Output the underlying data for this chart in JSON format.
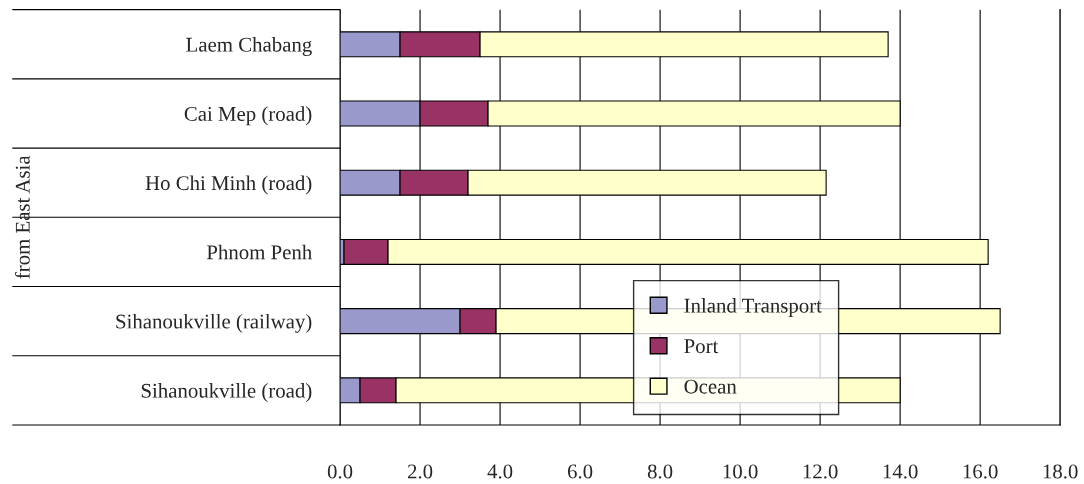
{
  "chart_data": {
    "type": "bar",
    "orientation": "horizontal",
    "stacked": true,
    "ylabel": "from East Asia",
    "categories": [
      "Laem Chabang",
      "Cai Mep (road)",
      "Ho Chi Minh (road)",
      "Phnom Penh",
      "Sihanoukville (railway)",
      "Sihanoukville (road)"
    ],
    "series": [
      {
        "name": "Inland Transport",
        "color": "#9999cc",
        "values": [
          1.5,
          2.0,
          1.5,
          0.1,
          3.0,
          0.5
        ]
      },
      {
        "name": "Port",
        "color": "#993366",
        "values": [
          2.0,
          1.7,
          1.7,
          1.1,
          0.9,
          0.9
        ]
      },
      {
        "name": "Ocean",
        "color": "#ffffcc",
        "values": [
          10.2,
          10.3,
          8.95,
          15.0,
          12.6,
          12.6
        ]
      }
    ],
    "xlim": [
      0,
      18
    ],
    "xticks": [
      {
        "value": 0,
        "label": "0.0"
      },
      {
        "value": 2,
        "label": "2.0"
      },
      {
        "value": 4,
        "label": "4.0"
      },
      {
        "value": 6,
        "label": "6.0"
      },
      {
        "value": 8,
        "label": "8.0"
      },
      {
        "value": 10,
        "label": "10.0"
      },
      {
        "value": 12,
        "label": "12.0"
      },
      {
        "value": 14,
        "label": "14.0"
      },
      {
        "value": 16,
        "label": "16.0"
      },
      {
        "value": 18,
        "label": "18.0"
      }
    ],
    "grid": "x",
    "legend": "bottom"
  }
}
